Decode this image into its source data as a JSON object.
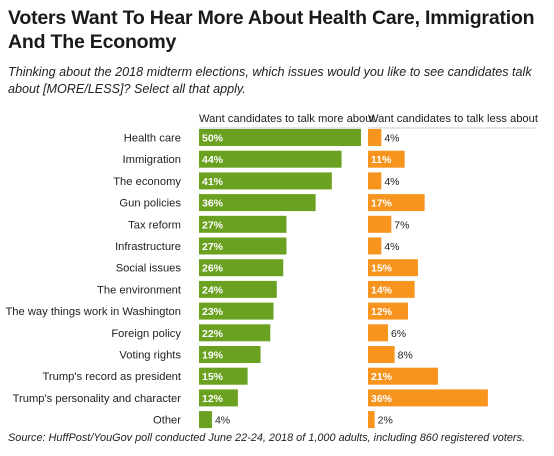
{
  "title": "Voters Want To Hear More About Health Care, Immigration And The Economy",
  "subtitle": "Thinking about the 2018 midterm elections, which issues would you like to see candidates talk about [MORE/LESS]? Select all that apply.",
  "source": "Source: HuffPost/YouGov poll conducted June 22-24, 2018 of 1,000 adults, including 860 registered voters.",
  "colors": {
    "more": "#6aa121",
    "less": "#f7941d",
    "divider": "#cccccc",
    "label_inside": "#ffffff",
    "label_outside": "#222222"
  },
  "chart_data": {
    "type": "bar",
    "orientation": "horizontal",
    "categories": [
      "Health care",
      "Immigration",
      "The economy",
      "Gun policies",
      "Tax reform",
      "Infrastructure",
      "Social issues",
      "The environment",
      "The way things work in Washington",
      "Foreign policy",
      "Voting rights",
      "Trump's record as president",
      "Trump's personality and character",
      "Other"
    ],
    "series": [
      {
        "name": "Want candidates to talk more about",
        "color": "#6aa121",
        "values": [
          50,
          44,
          41,
          36,
          27,
          27,
          26,
          24,
          23,
          22,
          19,
          15,
          12,
          4
        ],
        "labels": [
          "50%",
          "44%",
          "41%",
          "36%",
          "27%",
          "27%",
          "26%",
          "24%",
          "23%",
          "22%",
          "19%",
          "15%",
          "12%",
          "4%"
        ]
      },
      {
        "name": "Want candidates to talk less about",
        "color": "#f7941d",
        "values": [
          4,
          11,
          4,
          17,
          7,
          4,
          15,
          14,
          12,
          6,
          8,
          21,
          36,
          2
        ],
        "labels": [
          "4%",
          "11%",
          "4%",
          "17%",
          "7%",
          "4%",
          "15%",
          "14%",
          "12%",
          "6%",
          "8%",
          "21%",
          "36%",
          "2%"
        ]
      }
    ]
  }
}
